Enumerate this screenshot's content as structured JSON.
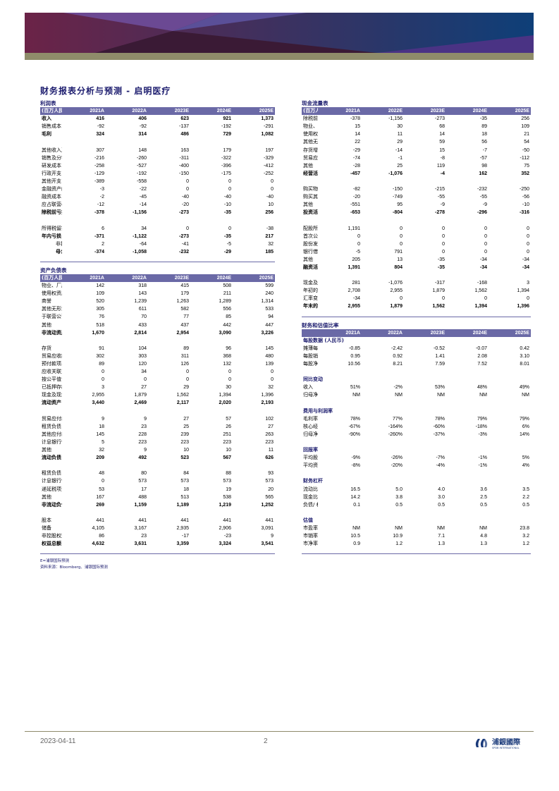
{
  "title": "财务报表分析与预测 - 启明医疗",
  "colors": {
    "header_bar": "#6a69a6",
    "heading": "#1c1c6e",
    "footer_rule": "#8f8a6a",
    "banner_strip": "#8f8c6a"
  },
  "left": {
    "income": {
      "title": "利润表",
      "header": [
        "(百万人民币)",
        "2021A",
        "2022A",
        "2023E",
        "2024E",
        "2025E"
      ],
      "rows": [
        {
          "label": "收入",
          "values": [
            "416",
            "406",
            "623",
            "921",
            "1,373"
          ],
          "style": "bold"
        },
        {
          "label": "销售成本",
          "values": [
            "-92",
            "-92",
            "-137",
            "-192",
            "-291"
          ]
        },
        {
          "label": "毛利",
          "values": [
            "324",
            "314",
            "486",
            "729",
            "1,082"
          ],
          "style": "bold"
        },
        {
          "blank": true
        },
        {
          "label": "其他收入及收益",
          "values": [
            "307",
            "148",
            "163",
            "179",
            "197"
          ]
        },
        {
          "label": "销售及分销开支",
          "values": [
            "-216",
            "-260",
            "-311",
            "-322",
            "-329"
          ]
        },
        {
          "label": "研发成本",
          "values": [
            "-258",
            "-527",
            "-400",
            "-396",
            "-412"
          ]
        },
        {
          "label": "行政开支",
          "values": [
            "-129",
            "-192",
            "-150",
            "-175",
            "-252"
          ]
        },
        {
          "label": "其他开支",
          "values": [
            "-389",
            "-558",
            "0",
            "0",
            "0"
          ]
        },
        {
          "label": "金融资产的减值亏损净额",
          "values": [
            "-3",
            "-22",
            "0",
            "0",
            "0"
          ]
        },
        {
          "label": "融资成本",
          "values": [
            "-2",
            "-45",
            "-40",
            "-40",
            "-40"
          ]
        },
        {
          "label": "应占联营&合营公司溢利",
          "values": [
            "-12",
            "-14",
            "-20",
            "-10",
            "10"
          ]
        },
        {
          "label": "除税前亏损",
          "values": [
            "-378",
            "-1,156",
            "-273",
            "-35",
            "256"
          ],
          "style": "bold"
        },
        {
          "blank": true
        },
        {
          "label": "所得税留抵",
          "values": [
            "6",
            "34",
            "0",
            "0",
            "-38"
          ]
        },
        {
          "label": "年内亏损",
          "values": [
            "-371",
            "-1,122",
            "-273",
            "-35",
            "217"
          ],
          "style": "bold"
        },
        {
          "label": "非控股权益",
          "values": [
            "2",
            "-64",
            "-41",
            "-5",
            "32"
          ],
          "style": "ind"
        },
        {
          "label": "母公司拥有人",
          "values": [
            "-374",
            "-1,058",
            "-232",
            "-29",
            "185"
          ],
          "style": "ind bold"
        }
      ]
    },
    "balance": {
      "title": "资产负债表",
      "header": [
        "(百万人民币)",
        "2021A",
        "2022A",
        "2023E",
        "2024E",
        "2025E"
      ],
      "rows": [
        {
          "label": "物业、厂房及设备",
          "values": [
            "142",
            "318",
            "415",
            "508",
            "599"
          ]
        },
        {
          "label": "使用权资产",
          "values": [
            "109",
            "143",
            "179",
            "211",
            "240"
          ]
        },
        {
          "label": "商誉",
          "values": [
            "520",
            "1,239",
            "1,263",
            "1,289",
            "1,314"
          ]
        },
        {
          "label": "其他无形资产",
          "values": [
            "305",
            "611",
            "582",
            "556",
            "533"
          ]
        },
        {
          "label": "于联营公司的投资",
          "values": [
            "76",
            "70",
            "77",
            "85",
            "94"
          ]
        },
        {
          "label": "其他",
          "values": [
            "518",
            "433",
            "437",
            "442",
            "447"
          ]
        },
        {
          "label": "非流动资产",
          "values": [
            "1,670",
            "2,814",
            "2,954",
            "3,090",
            "3,226"
          ],
          "style": "bold"
        },
        {
          "blank": true
        },
        {
          "label": "存货",
          "values": [
            "91",
            "104",
            "89",
            "96",
            "145"
          ]
        },
        {
          "label": "贸易应收款项",
          "values": [
            "302",
            "303",
            "311",
            "368",
            "480"
          ]
        },
        {
          "label": "预付款项、其他应收款项及其他资产",
          "values": [
            "89",
            "120",
            "126",
            "132",
            "139"
          ]
        },
        {
          "label": "应收关联方款项",
          "values": [
            "0",
            "34",
            "0",
            "0",
            "0"
          ]
        },
        {
          "label": "按公平值计入损益的金融资产",
          "values": [
            "0",
            "0",
            "0",
            "0",
            "0"
          ]
        },
        {
          "label": "已抵押存款",
          "values": [
            "3",
            "27",
            "29",
            "30",
            "32"
          ]
        },
        {
          "label": "现金及现金等价物",
          "values": [
            "2,955",
            "1,879",
            "1,562",
            "1,394",
            "1,396"
          ]
        },
        {
          "label": "流动资产",
          "values": [
            "3,440",
            "2,469",
            "2,117",
            "2,020",
            "2,193"
          ],
          "style": "bold"
        },
        {
          "blank": true
        },
        {
          "label": "贸易应付款项",
          "values": [
            "9",
            "9",
            "27",
            "57",
            "102"
          ]
        },
        {
          "label": "租赁负债",
          "values": [
            "18",
            "23",
            "25",
            "26",
            "27"
          ]
        },
        {
          "label": "其他应付款项及应计费用",
          "values": [
            "145",
            "228",
            "239",
            "251",
            "263"
          ]
        },
        {
          "label": "计息银行借款",
          "values": [
            "5",
            "223",
            "223",
            "223",
            "223"
          ]
        },
        {
          "label": "其他",
          "values": [
            "32",
            "9",
            "10",
            "10",
            "11"
          ]
        },
        {
          "label": "流动负债",
          "values": [
            "209",
            "492",
            "523",
            "567",
            "626"
          ],
          "style": "bold"
        },
        {
          "blank": true
        },
        {
          "label": "租赁负债",
          "values": [
            "48",
            "80",
            "84",
            "88",
            "93"
          ]
        },
        {
          "label": "计息银行借款",
          "values": [
            "0",
            "573",
            "573",
            "573",
            "573"
          ]
        },
        {
          "label": "递延税项负债",
          "values": [
            "53",
            "17",
            "18",
            "19",
            "20"
          ]
        },
        {
          "label": "其他",
          "values": [
            "167",
            "488",
            "513",
            "538",
            "565"
          ]
        },
        {
          "label": "非流动负债",
          "values": [
            "269",
            "1,159",
            "1,189",
            "1,219",
            "1,252"
          ],
          "style": "bold"
        },
        {
          "blank": true
        },
        {
          "label": "股本",
          "values": [
            "441",
            "441",
            "441",
            "441",
            "441"
          ]
        },
        {
          "label": "储备",
          "values": [
            "4,105",
            "3,167",
            "2,935",
            "2,906",
            "3,091"
          ]
        },
        {
          "label": "非控股权益",
          "values": [
            "86",
            "23",
            "-17",
            "-23",
            "9"
          ]
        },
        {
          "label": "权益总额",
          "values": [
            "4,632",
            "3,631",
            "3,359",
            "3,324",
            "3,541"
          ],
          "style": "bold"
        }
      ]
    },
    "notes": [
      "E=浦银国际预测",
      "资料来源：Bloomberg、浦银国际预测"
    ]
  },
  "right": {
    "cashflow": {
      "title": "现金流量表",
      "header": [
        "(百万人民币)",
        "2021A",
        "2022E",
        "2023E",
        "2024E",
        "2025E"
      ],
      "rows": [
        {
          "label": "除税前亏损",
          "values": [
            "-378",
            "-1,156",
            "-273",
            "-35",
            "256"
          ]
        },
        {
          "label": "物业、厂房及设备折旧",
          "values": [
            "15",
            "30",
            "68",
            "89",
            "109"
          ]
        },
        {
          "label": "使用权资产折旧",
          "values": [
            "14",
            "11",
            "14",
            "18",
            "21"
          ]
        },
        {
          "label": "其他无形资产摊销",
          "values": [
            "22",
            "29",
            "59",
            "56",
            "54"
          ]
        },
        {
          "label": "存货增加",
          "values": [
            "-29",
            "-14",
            "15",
            "-7",
            "-50"
          ]
        },
        {
          "label": "贸易应收款项增加",
          "values": [
            "-74",
            "-1",
            "-8",
            "-57",
            "-112"
          ]
        },
        {
          "label": "其他",
          "values": [
            "-28",
            "25",
            "119",
            "98",
            "75"
          ]
        },
        {
          "label": "经营活动所用现金流量净额",
          "values": [
            "-457",
            "-1,076",
            "-4",
            "162",
            "352"
          ],
          "style": "bold"
        },
        {
          "blank": true
        },
        {
          "label": "购买物业、厂房及设备项目",
          "values": [
            "-82",
            "-150",
            "-215",
            "-232",
            "-250"
          ]
        },
        {
          "label": "购买其他无形资产",
          "values": [
            "-20",
            "-749",
            "-55",
            "-55",
            "-56"
          ]
        },
        {
          "label": "其他",
          "values": [
            "-551",
            "95",
            "-9",
            "-9",
            "-10"
          ]
        },
        {
          "label": "投资活动所用现金流量净额",
          "values": [
            "-653",
            "-804",
            "-278",
            "-296",
            "-316"
          ],
          "style": "bold"
        },
        {
          "blank": true
        },
        {
          "label": "配股所得款项",
          "values": [
            "1,191",
            "0",
            "0",
            "0",
            "0"
          ]
        },
        {
          "label": "首次公开发售所得款项",
          "values": [
            "0",
            "0",
            "0",
            "0",
            "0"
          ]
        },
        {
          "label": "股份发行开支",
          "values": [
            "0",
            "0",
            "0",
            "0",
            "0"
          ]
        },
        {
          "label": "银行借款所得款项",
          "values": [
            "-5",
            "791",
            "0",
            "0",
            "0"
          ]
        },
        {
          "label": "其他",
          "values": [
            "205",
            "13",
            "-35",
            "-34",
            "-34"
          ]
        },
        {
          "label": "融资活动所得现金流量净额",
          "values": [
            "1,391",
            "804",
            "-35",
            "-34",
            "-34"
          ],
          "style": "bold"
        },
        {
          "blank": true
        },
        {
          "label": "现金及现金等价物增加净额",
          "values": [
            "281",
            "-1,076",
            "-317",
            "-168",
            "3"
          ]
        },
        {
          "label": "年初的现金及现金等价物",
          "values": [
            "2,708",
            "2,955",
            "1,879",
            "1,562",
            "1,394"
          ]
        },
        {
          "label": "汇率变动影响净额",
          "values": [
            "-34",
            "0",
            "0",
            "0",
            "0"
          ]
        },
        {
          "label": "年末的现金及现金等价物",
          "values": [
            "2,955",
            "1,879",
            "1,562",
            "1,394",
            "1,396"
          ],
          "style": "bold"
        }
      ]
    },
    "ratios": {
      "title": "财务和估值比率",
      "header": [
        "",
        "2021A",
        "2022A",
        "2023E",
        "2024E",
        "2025E"
      ],
      "rows": [
        {
          "label": "每股数据 (人民币)",
          "style": "sub"
        },
        {
          "label": "摊薄每股收益",
          "values": [
            "-0.85",
            "-2.42",
            "-0.52",
            "-0.07",
            "0.42"
          ]
        },
        {
          "label": "每股销售额",
          "values": [
            "0.95",
            "0.92",
            "1.41",
            "2.08",
            "3.10"
          ]
        },
        {
          "label": "每股净资产",
          "values": [
            "10.56",
            "8.21",
            "7.59",
            "7.52",
            "8.01"
          ]
        },
        {
          "blank": true
        },
        {
          "label": "同比变动",
          "style": "sub"
        },
        {
          "label": "收入",
          "values": [
            "51%",
            "-2%",
            "53%",
            "48%",
            "49%"
          ]
        },
        {
          "label": "归母净利",
          "values": [
            "NM",
            "NM",
            "NM",
            "NM",
            "NM"
          ]
        },
        {
          "blank": true
        },
        {
          "label": "费用与利润率",
          "style": "sub"
        },
        {
          "label": "毛利率",
          "values": [
            "78%",
            "77%",
            "78%",
            "79%",
            "79%"
          ]
        },
        {
          "label": "核心经营利润率",
          "values": [
            "-67%",
            "-164%",
            "-60%",
            "-18%",
            "6%"
          ]
        },
        {
          "label": "归母净利率",
          "values": [
            "-90%",
            "-260%",
            "-37%",
            "-3%",
            "14%"
          ]
        },
        {
          "blank": true
        },
        {
          "label": "回报率",
          "style": "sub"
        },
        {
          "label": "平均股本回报率",
          "values": [
            "-9%",
            "-26%",
            "-7%",
            "-1%",
            "5%"
          ]
        },
        {
          "label": "平均资产回报率",
          "values": [
            "-8%",
            "-20%",
            "-4%",
            "-1%",
            "4%"
          ]
        },
        {
          "blank": true
        },
        {
          "label": "财务杠杆",
          "style": "sub"
        },
        {
          "label": "流动比率 (x)",
          "values": [
            "16.5",
            "5.0",
            "4.0",
            "3.6",
            "3.5"
          ]
        },
        {
          "label": "现金比率 (x)",
          "values": [
            "14.2",
            "3.8",
            "3.0",
            "2.5",
            "2.2"
          ]
        },
        {
          "label": "负债/ 权益",
          "values": [
            "0.1",
            "0.5",
            "0.5",
            "0.5",
            "0.5"
          ]
        },
        {
          "blank": true
        },
        {
          "label": "估值",
          "style": "sub"
        },
        {
          "label": "市盈率 (x)",
          "values": [
            "NM",
            "NM",
            "NM",
            "NM",
            "23.8"
          ]
        },
        {
          "label": "市销率 (x)",
          "values": [
            "10.5",
            "10.9",
            "7.1",
            "4.8",
            "3.2"
          ]
        },
        {
          "label": "市净率 (x)",
          "values": [
            "0.9",
            "1.2",
            "1.3",
            "1.3",
            "1.2"
          ]
        }
      ]
    }
  },
  "footer": {
    "date": "2023-04-11",
    "page": "2",
    "logo_cn": "浦銀國際",
    "logo_en": "SPDB INTERNATIONAL"
  }
}
